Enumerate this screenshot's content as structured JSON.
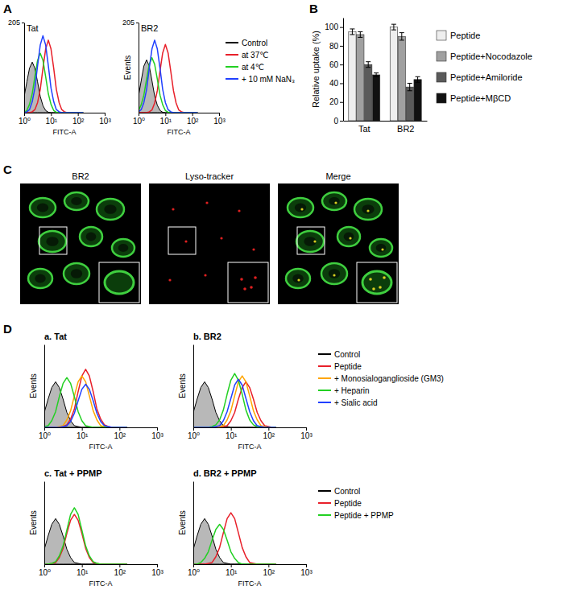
{
  "chart_data": [
    {
      "panel": "A",
      "type": "line",
      "title": "Tat",
      "log": "x",
      "xlabel": "FITC-A",
      "xlim": [
        1,
        1000
      ],
      "xticks": [
        {
          "value": 1,
          "label": "10⁰"
        },
        {
          "value": 10,
          "label": "10¹"
        },
        {
          "value": 100,
          "label": "10²"
        },
        {
          "value": 1000,
          "label": "10³"
        }
      ],
      "ylim": [
        0,
        205
      ],
      "yticks": [
        205
      ],
      "x": [
        1,
        1.26,
        1.58,
        2,
        2.51,
        3.16,
        3.98,
        5.01,
        6.31,
        7.94,
        10,
        12.6,
        15.8,
        20,
        25.1,
        31.6,
        39.8,
        50.1,
        63.1,
        79.4,
        100,
        126,
        158
      ],
      "series": [
        {
          "type": "area",
          "color": "#000000",
          "values": [
            37,
            70,
            101,
            115,
            101,
            70,
            37,
            16,
            5,
            1,
            0,
            0,
            0,
            0,
            0,
            0,
            0,
            0,
            0,
            0,
            0,
            0,
            0
          ]
        },
        {
          "color": "#e8202a",
          "values": [
            0,
            0,
            0,
            2,
            7,
            23,
            53,
            101,
            145,
            165,
            145,
            101,
            53,
            23,
            7,
            2,
            0,
            0,
            0,
            0,
            0,
            0,
            0
          ]
        },
        {
          "color": "#22d022",
          "values": [
            1,
            5,
            19,
            43,
            82,
            119,
            135,
            119,
            82,
            43,
            19,
            5,
            1,
            0,
            0,
            0,
            0,
            0,
            0,
            0,
            0,
            0,
            0
          ]
        },
        {
          "color": "#2040ff",
          "values": [
            0,
            2,
            7,
            25,
            56,
            107,
            154,
            175,
            154,
            107,
            56,
            25,
            7,
            2,
            0,
            0,
            0,
            0,
            0,
            0,
            0,
            0,
            0
          ]
        }
      ]
    },
    {
      "type": "line",
      "title": "BR2",
      "log": "x",
      "xlabel": "FITC-A",
      "ylabel": "Events",
      "legend": "right",
      "xlim": [
        1,
        1000
      ],
      "xticks": [
        {
          "value": 1,
          "label": "10⁰"
        },
        {
          "value": 10,
          "label": "10¹"
        },
        {
          "value": 100,
          "label": "10²"
        },
        {
          "value": 1000,
          "label": "10³"
        }
      ],
      "ylim": [
        0,
        205
      ],
      "yticks": [
        205
      ],
      "x": [
        1,
        1.26,
        1.58,
        2,
        2.51,
        3.16,
        3.98,
        5.01,
        6.31,
        7.94,
        10,
        12.6,
        15.8,
        20,
        25.1,
        31.6,
        39.8,
        50.1,
        63.1,
        79.4,
        100,
        126,
        158
      ],
      "series": [
        {
          "name": "Control",
          "type": "area",
          "color": "#000000",
          "values": [
            38,
            73,
            106,
            120,
            106,
            73,
            38,
            17,
            5,
            1,
            0,
            0,
            0,
            0,
            0,
            0,
            0,
            0,
            0,
            0,
            0,
            0,
            0
          ]
        },
        {
          "name": "at 37℃",
          "color": "#e8202a",
          "values": [
            0,
            0,
            0,
            0,
            2,
            6,
            22,
            50,
            95,
            136,
            155,
            136,
            95,
            50,
            22,
            6,
            2,
            0,
            0,
            0,
            0,
            0,
            0
          ]
        },
        {
          "name": "at 4℃",
          "color": "#22d022",
          "values": [
            5,
            18,
            40,
            76,
            110,
            125,
            110,
            76,
            40,
            18,
            5,
            1,
            0,
            0,
            0,
            0,
            0,
            0,
            0,
            0,
            0,
            0,
            0
          ]
        },
        {
          "name": "+ 10 mM NaN₃",
          "color": "#2040ff",
          "values": [
            2,
            7,
            23,
            53,
            101,
            145,
            165,
            145,
            101,
            53,
            23,
            7,
            2,
            0,
            0,
            0,
            0,
            0,
            0,
            0,
            0,
            0,
            0
          ]
        }
      ]
    },
    {
      "panel": "B",
      "type": "bar",
      "ylabel": "Relative uptake (%)",
      "legend": "right",
      "categories": [
        "Tat",
        "BR2"
      ],
      "ylim": [
        0,
        110
      ],
      "yticks": [
        0,
        20,
        40,
        60,
        80,
        100
      ],
      "series": [
        {
          "name": "Peptide",
          "color": "#eeeeee",
          "values": [
            95,
            100
          ],
          "errors": [
            3,
            3
          ]
        },
        {
          "name": "Peptide+Nocodazole",
          "color": "#a0a0a0",
          "values": [
            92,
            90
          ],
          "errors": [
            3,
            4
          ]
        },
        {
          "name": "Peptide+Amiloride",
          "color": "#5a5a5a",
          "values": [
            60,
            36
          ],
          "errors": [
            3,
            4
          ]
        },
        {
          "name": "Peptide+MβCD",
          "color": "#111111",
          "values": [
            49,
            44
          ],
          "errors": [
            2,
            3
          ]
        }
      ]
    },
    {
      "panel": "C",
      "type": "image",
      "titles": [
        "BR2",
        "Lyso-tracker",
        "Merge"
      ]
    },
    {
      "panel": "D",
      "type": "line",
      "title": "a. Tat",
      "log": "x",
      "xlabel": "FITC-A",
      "ylabel": "Events",
      "tick_labels": "x",
      "xlim": [
        1,
        1000
      ],
      "xticks": [
        {
          "value": 1,
          "label": "10⁰"
        },
        {
          "value": 10,
          "label": "10¹"
        },
        {
          "value": 100,
          "label": "10²"
        },
        {
          "value": 1000,
          "label": "10³"
        }
      ],
      "ylim": [
        0,
        100
      ],
      "x": [
        1,
        1.26,
        1.58,
        2,
        2.51,
        3.16,
        3.98,
        5.01,
        6.31,
        7.94,
        10,
        12.6,
        15.8,
        20,
        25.1,
        31.6,
        39.8,
        50.1,
        63.1,
        79.4,
        100,
        126,
        158
      ],
      "series": [
        {
          "type": "area",
          "color": "#000000",
          "values": [
            18,
            34,
            48,
            55,
            48,
            34,
            18,
            8,
            2,
            1,
            0,
            0,
            0,
            0,
            0,
            0,
            0,
            0,
            0,
            0,
            0,
            0,
            0
          ]
        },
        {
          "color": "#e8202a",
          "values": [
            0,
            0,
            0,
            0,
            0,
            1,
            3,
            10,
            22,
            43,
            62,
            70,
            62,
            43,
            22,
            10,
            3,
            1,
            0,
            0,
            0,
            0,
            0
          ]
        },
        {
          "color": "#ffa500",
          "values": [
            0,
            0,
            0,
            0,
            1,
            2,
            9,
            20,
            38,
            55,
            62,
            55,
            38,
            20,
            9,
            2,
            1,
            0,
            0,
            0,
            0,
            0,
            0
          ]
        },
        {
          "color": "#22d022",
          "values": [
            1,
            2,
            8,
            19,
            37,
            53,
            60,
            53,
            37,
            19,
            8,
            2,
            1,
            0,
            0,
            0,
            0,
            0,
            0,
            0,
            0,
            0,
            0
          ]
        },
        {
          "color": "#2040ff",
          "values": [
            0,
            0,
            0,
            0,
            0,
            1,
            2,
            7,
            17,
            32,
            46,
            52,
            46,
            32,
            17,
            7,
            2,
            1,
            0,
            0,
            0,
            0,
            0
          ]
        }
      ]
    },
    {
      "type": "line",
      "title": "b. BR2",
      "log": "x",
      "xlabel": "FITC-A",
      "ylabel": "Events",
      "tick_labels": "x",
      "legend": "right",
      "xlim": [
        1,
        1000
      ],
      "xticks": [
        {
          "value": 1,
          "label": "10⁰"
        },
        {
          "value": 10,
          "label": "10¹"
        },
        {
          "value": 100,
          "label": "10²"
        },
        {
          "value": 1000,
          "label": "10³"
        }
      ],
      "ylim": [
        0,
        100
      ],
      "x": [
        1,
        1.26,
        1.58,
        2,
        2.51,
        3.16,
        3.98,
        5.01,
        6.31,
        7.94,
        10,
        12.6,
        15.8,
        20,
        25.1,
        31.6,
        39.8,
        50.1,
        63.1,
        79.4,
        100,
        126,
        158
      ],
      "series": [
        {
          "name": "Control",
          "type": "area",
          "color": "#000000",
          "values": [
            18,
            34,
            48,
            55,
            48,
            34,
            18,
            8,
            2,
            1,
            0,
            0,
            0,
            0,
            0,
            0,
            0,
            0,
            0,
            0,
            0,
            0,
            0
          ]
        },
        {
          "name": "Peptide",
          "color": "#e8202a",
          "values": [
            0,
            0,
            0,
            0,
            0,
            0,
            0,
            0,
            1,
            2,
            8,
            18,
            34,
            48,
            55,
            48,
            34,
            18,
            8,
            2,
            1,
            0,
            0
          ]
        },
        {
          "name": "+ Monosialoganglioside (GM3)",
          "color": "#ffa500",
          "values": [
            0,
            0,
            0,
            0,
            0,
            0,
            0,
            1,
            2,
            9,
            20,
            38,
            55,
            62,
            55,
            38,
            20,
            9,
            2,
            1,
            0,
            0,
            0
          ]
        },
        {
          "name": "+ Heparin",
          "color": "#22d022",
          "values": [
            0,
            0,
            0,
            0,
            0,
            1,
            3,
            9,
            21,
            40,
            57,
            65,
            57,
            40,
            21,
            9,
            3,
            1,
            0,
            0,
            0,
            0,
            0
          ]
        },
        {
          "name": "+ Sialic acid",
          "color": "#2040ff",
          "values": [
            0,
            0,
            0,
            0,
            0,
            0,
            1,
            2,
            8,
            19,
            35,
            51,
            58,
            51,
            35,
            19,
            8,
            2,
            1,
            0,
            0,
            0,
            0
          ]
        }
      ]
    },
    {
      "type": "line",
      "title": "c. Tat + PPMP",
      "log": "x",
      "xlabel": "FITC-A",
      "ylabel": "Events",
      "tick_labels": "x",
      "xlim": [
        1,
        1000
      ],
      "xticks": [
        {
          "value": 1,
          "label": "10⁰"
        },
        {
          "value": 10,
          "label": "10¹"
        },
        {
          "value": 100,
          "label": "10²"
        },
        {
          "value": 1000,
          "label": "10³"
        }
      ],
      "ylim": [
        0,
        100
      ],
      "x": [
        1,
        1.26,
        1.58,
        2,
        2.51,
        3.16,
        3.98,
        5.01,
        6.31,
        7.94,
        10,
        12.6,
        15.8,
        20,
        25.1,
        31.6,
        39.8,
        50.1,
        63.1,
        79.4,
        100,
        126,
        158
      ],
      "series": [
        {
          "type": "area",
          "color": "#000000",
          "values": [
            18,
            34,
            48,
            55,
            48,
            34,
            18,
            8,
            2,
            1,
            0,
            0,
            0,
            0,
            0,
            0,
            0,
            0,
            0,
            0,
            0,
            0,
            0
          ]
        },
        {
          "color": "#e8202a",
          "values": [
            0,
            0,
            1,
            2,
            8,
            19,
            37,
            53,
            60,
            53,
            37,
            19,
            8,
            2,
            1,
            0,
            0,
            0,
            0,
            0,
            0,
            0,
            0
          ]
        },
        {
          "color": "#22d022",
          "values": [
            0,
            0,
            1,
            3,
            10,
            22,
            41,
            60,
            68,
            60,
            41,
            22,
            10,
            3,
            1,
            0,
            0,
            0,
            0,
            0,
            0,
            0,
            0
          ]
        }
      ]
    },
    {
      "type": "line",
      "title": "d. BR2 + PPMP",
      "log": "x",
      "xlabel": "FITC-A",
      "ylabel": "Events",
      "tick_labels": "x",
      "legend": "right",
      "xlim": [
        1,
        1000
      ],
      "xticks": [
        {
          "value": 1,
          "label": "10⁰"
        },
        {
          "value": 10,
          "label": "10¹"
        },
        {
          "value": 100,
          "label": "10²"
        },
        {
          "value": 1000,
          "label": "10³"
        }
      ],
      "ylim": [
        0,
        100
      ],
      "x": [
        1,
        1.26,
        1.58,
        2,
        2.51,
        3.16,
        3.98,
        5.01,
        6.31,
        7.94,
        10,
        12.6,
        15.8,
        20,
        25.1,
        31.6,
        39.8,
        50.1,
        63.1,
        79.4,
        100,
        126,
        158
      ],
      "series": [
        {
          "name": "Control",
          "type": "area",
          "color": "#000000",
          "values": [
            18,
            34,
            48,
            55,
            48,
            34,
            18,
            8,
            2,
            1,
            0,
            0,
            0,
            0,
            0,
            0,
            0,
            0,
            0,
            0,
            0,
            0,
            0
          ]
        },
        {
          "name": "Peptide",
          "color": "#e8202a",
          "values": [
            0,
            0,
            0,
            0,
            1,
            2,
            9,
            20,
            38,
            55,
            62,
            55,
            38,
            20,
            9,
            2,
            1,
            0,
            0,
            0,
            0,
            0,
            0
          ]
        },
        {
          "name": "Peptide + PPMP",
          "color": "#22d022",
          "values": [
            0,
            0,
            2,
            7,
            15,
            29,
            42,
            48,
            42,
            29,
            15,
            7,
            2,
            0,
            0,
            0,
            0,
            0,
            0,
            0,
            0,
            0,
            0
          ]
        }
      ]
    }
  ]
}
